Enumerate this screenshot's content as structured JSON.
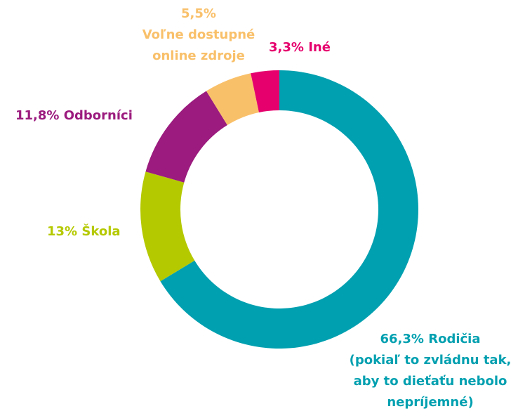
{
  "chart_data": {
    "type": "donut",
    "categories": [
      "Rodičia\n(pokiaľ to zvládnu tak,\naby to dieťaťu nebolo\nnepríjemné)",
      "Škola",
      "Odborníci",
      "Voľne dostupné\nonline zdroje",
      "Iné"
    ],
    "values": [
      66.3,
      13,
      11.8,
      5.5,
      3.3
    ],
    "value_labels": [
      "66,3%",
      "13%",
      "11,8%",
      "5,5%",
      "3,3%"
    ],
    "colors": [
      "#00a0b0",
      "#b5c900",
      "#9b1b7e",
      "#f9c06a",
      "#e5006d"
    ]
  }
}
